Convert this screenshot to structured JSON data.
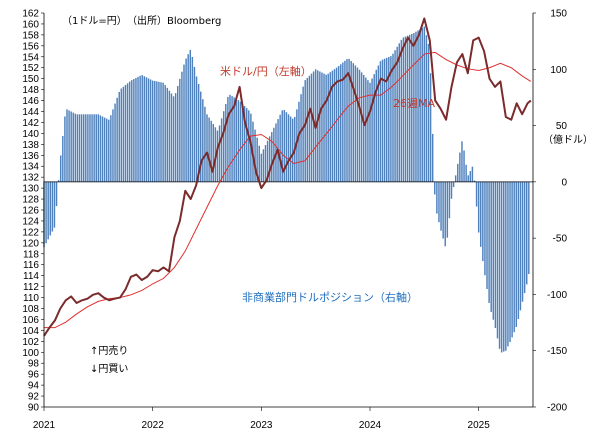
{
  "chart_data": {
    "type": "bar+line",
    "units_note": "（1ドル=円）",
    "source": "（出所）Bloomberg",
    "left_axis": {
      "unit": "",
      "min": 90,
      "max": 162,
      "step": 2
    },
    "right_axis": {
      "unit": "（億ドル）",
      "min": -200,
      "max": 150,
      "ticks": [
        150,
        100,
        50,
        0,
        -50,
        -100,
        -150,
        -200
      ]
    },
    "x_axis": {
      "min": 2021.0,
      "max": 2025.5,
      "ticks": [
        {
          "x": 2021,
          "label": "2021"
        },
        {
          "x": 2022,
          "label": "2022"
        },
        {
          "x": 2023,
          "label": "2023"
        },
        {
          "x": 2024,
          "label": "2024"
        },
        {
          "x": 2025,
          "label": "2025"
        }
      ]
    },
    "labels": {
      "usdjpy": "米ドル/円（左軸）",
      "ma": "26週MA",
      "positions": "非商業部門ドルポジション（右軸）",
      "sell_yen": "↑円売り",
      "buy_yen": "↓円買い"
    },
    "colors": {
      "usdjpy": "#7b2b2b",
      "ma": "#e03030",
      "bars": "#4f81bd",
      "bars_edge": "#2f5f9e",
      "label_red": "#c0392b",
      "label_blue": "#1f6fbf"
    },
    "series": [
      {
        "name": "米ドル/円（左軸）",
        "kind": "line",
        "axis": "left",
        "points": [
          [
            2021.0,
            103.0
          ],
          [
            2021.05,
            104.5
          ],
          [
            2021.1,
            105.8
          ],
          [
            2021.15,
            108.0
          ],
          [
            2021.2,
            109.5
          ],
          [
            2021.25,
            110.2
          ],
          [
            2021.3,
            109.0
          ],
          [
            2021.35,
            109.5
          ],
          [
            2021.4,
            109.8
          ],
          [
            2021.45,
            110.5
          ],
          [
            2021.5,
            110.8
          ],
          [
            2021.55,
            110.0
          ],
          [
            2021.6,
            109.5
          ],
          [
            2021.65,
            109.8
          ],
          [
            2021.7,
            110.0
          ],
          [
            2021.75,
            111.5
          ],
          [
            2021.8,
            113.8
          ],
          [
            2021.85,
            114.2
          ],
          [
            2021.9,
            113.2
          ],
          [
            2021.95,
            113.8
          ],
          [
            2022.0,
            115.0
          ],
          [
            2022.05,
            114.8
          ],
          [
            2022.1,
            115.5
          ],
          [
            2022.15,
            114.8
          ],
          [
            2022.2,
            121.0
          ],
          [
            2022.25,
            124.0
          ],
          [
            2022.3,
            129.5
          ],
          [
            2022.35,
            128.0
          ],
          [
            2022.4,
            130.5
          ],
          [
            2022.45,
            135.0
          ],
          [
            2022.5,
            136.5
          ],
          [
            2022.55,
            133.0
          ],
          [
            2022.6,
            137.5
          ],
          [
            2022.65,
            140.0
          ],
          [
            2022.7,
            143.5
          ],
          [
            2022.75,
            145.0
          ],
          [
            2022.8,
            148.5
          ],
          [
            2022.85,
            142.0
          ],
          [
            2022.9,
            138.5
          ],
          [
            2022.95,
            133.0
          ],
          [
            2023.0,
            130.0
          ],
          [
            2023.05,
            131.5
          ],
          [
            2023.1,
            134.5
          ],
          [
            2023.15,
            137.0
          ],
          [
            2023.2,
            133.0
          ],
          [
            2023.25,
            135.0
          ],
          [
            2023.3,
            136.5
          ],
          [
            2023.35,
            140.0
          ],
          [
            2023.4,
            141.5
          ],
          [
            2023.45,
            144.5
          ],
          [
            2023.5,
            141.0
          ],
          [
            2023.55,
            144.5
          ],
          [
            2023.6,
            146.0
          ],
          [
            2023.65,
            148.5
          ],
          [
            2023.7,
            149.5
          ],
          [
            2023.75,
            149.8
          ],
          [
            2023.8,
            151.0
          ],
          [
            2023.85,
            148.0
          ],
          [
            2023.9,
            145.0
          ],
          [
            2023.95,
            141.5
          ],
          [
            2024.0,
            144.0
          ],
          [
            2024.05,
            147.5
          ],
          [
            2024.1,
            150.0
          ],
          [
            2024.15,
            149.5
          ],
          [
            2024.2,
            151.5
          ],
          [
            2024.25,
            153.0
          ],
          [
            2024.3,
            155.5
          ],
          [
            2024.35,
            157.5
          ],
          [
            2024.4,
            156.0
          ],
          [
            2024.45,
            158.0
          ],
          [
            2024.5,
            161.0
          ],
          [
            2024.55,
            157.0
          ],
          [
            2024.6,
            146.0
          ],
          [
            2024.65,
            144.5
          ],
          [
            2024.7,
            142.5
          ],
          [
            2024.75,
            148.5
          ],
          [
            2024.8,
            153.0
          ],
          [
            2024.85,
            154.5
          ],
          [
            2024.9,
            151.0
          ],
          [
            2024.95,
            157.0
          ],
          [
            2025.0,
            157.5
          ],
          [
            2025.05,
            155.0
          ],
          [
            2025.1,
            150.0
          ],
          [
            2025.15,
            148.5
          ],
          [
            2025.2,
            149.5
          ],
          [
            2025.25,
            143.0
          ],
          [
            2025.3,
            142.5
          ],
          [
            2025.35,
            145.5
          ],
          [
            2025.4,
            143.5
          ],
          [
            2025.45,
            145.5
          ],
          [
            2025.48,
            146.0
          ]
        ]
      },
      {
        "name": "26週MA",
        "kind": "line",
        "axis": "left",
        "points": [
          [
            2021.0,
            104.5
          ],
          [
            2021.1,
            104.5
          ],
          [
            2021.2,
            105.5
          ],
          [
            2021.3,
            107.0
          ],
          [
            2021.4,
            108.3
          ],
          [
            2021.5,
            109.3
          ],
          [
            2021.6,
            109.8
          ],
          [
            2021.7,
            110.0
          ],
          [
            2021.8,
            110.5
          ],
          [
            2021.9,
            111.3
          ],
          [
            2022.0,
            112.5
          ],
          [
            2022.1,
            113.5
          ],
          [
            2022.2,
            115.5
          ],
          [
            2022.3,
            118.5
          ],
          [
            2022.4,
            122.5
          ],
          [
            2022.5,
            126.5
          ],
          [
            2022.6,
            130.5
          ],
          [
            2022.7,
            134.0
          ],
          [
            2022.8,
            137.0
          ],
          [
            2022.9,
            139.5
          ],
          [
            2023.0,
            139.8
          ],
          [
            2023.1,
            138.5
          ],
          [
            2023.2,
            136.0
          ],
          [
            2023.3,
            134.5
          ],
          [
            2023.4,
            135.0
          ],
          [
            2023.5,
            137.5
          ],
          [
            2023.6,
            140.0
          ],
          [
            2023.7,
            142.5
          ],
          [
            2023.8,
            145.0
          ],
          [
            2023.9,
            146.5
          ],
          [
            2024.0,
            147.0
          ],
          [
            2024.1,
            147.0
          ],
          [
            2024.2,
            148.5
          ],
          [
            2024.3,
            150.5
          ],
          [
            2024.4,
            152.5
          ],
          [
            2024.5,
            154.5
          ],
          [
            2024.6,
            154.8
          ],
          [
            2024.7,
            153.5
          ],
          [
            2024.8,
            152.5
          ],
          [
            2024.9,
            151.8
          ],
          [
            2025.0,
            151.5
          ],
          [
            2025.1,
            152.0
          ],
          [
            2025.2,
            152.8
          ],
          [
            2025.3,
            152.0
          ],
          [
            2025.4,
            150.5
          ],
          [
            2025.48,
            149.5
          ]
        ]
      },
      {
        "name": "非商業部門ドルポジション（右軸）",
        "kind": "bar",
        "axis": "right",
        "points": [
          [
            2021.0,
            -58
          ],
          [
            2021.1,
            -40
          ],
          [
            2021.15,
            20
          ],
          [
            2021.2,
            65
          ],
          [
            2021.3,
            60
          ],
          [
            2021.4,
            60
          ],
          [
            2021.5,
            60
          ],
          [
            2021.6,
            55
          ],
          [
            2021.7,
            82
          ],
          [
            2021.8,
            90
          ],
          [
            2021.9,
            95
          ],
          [
            2022.0,
            90
          ],
          [
            2022.1,
            88
          ],
          [
            2022.2,
            75
          ],
          [
            2022.3,
            108
          ],
          [
            2022.35,
            118
          ],
          [
            2022.4,
            95
          ],
          [
            2022.5,
            60
          ],
          [
            2022.6,
            45
          ],
          [
            2022.7,
            78
          ],
          [
            2022.8,
            72
          ],
          [
            2022.9,
            62
          ],
          [
            2023.0,
            25
          ],
          [
            2023.1,
            45
          ],
          [
            2023.2,
            65
          ],
          [
            2023.3,
            55
          ],
          [
            2023.4,
            90
          ],
          [
            2023.5,
            100
          ],
          [
            2023.6,
            95
          ],
          [
            2023.7,
            102
          ],
          [
            2023.8,
            110
          ],
          [
            2023.9,
            100
          ],
          [
            2024.0,
            88
          ],
          [
            2024.1,
            108
          ],
          [
            2024.2,
            112
          ],
          [
            2024.3,
            128
          ],
          [
            2024.4,
            132
          ],
          [
            2024.5,
            138
          ],
          [
            2024.55,
            118
          ],
          [
            2024.6,
            -22
          ],
          [
            2024.65,
            -42
          ],
          [
            2024.7,
            -60
          ],
          [
            2024.75,
            -15
          ],
          [
            2024.8,
            12
          ],
          [
            2024.85,
            38
          ],
          [
            2024.9,
            5
          ],
          [
            2024.95,
            15
          ],
          [
            2025.0,
            -45
          ],
          [
            2025.05,
            -78
          ],
          [
            2025.1,
            -110
          ],
          [
            2025.15,
            -128
          ],
          [
            2025.2,
            -152
          ],
          [
            2025.25,
            -150
          ],
          [
            2025.3,
            -140
          ],
          [
            2025.35,
            -128
          ],
          [
            2025.4,
            -108
          ],
          [
            2025.45,
            -88
          ],
          [
            2025.48,
            -72
          ]
        ]
      }
    ]
  }
}
